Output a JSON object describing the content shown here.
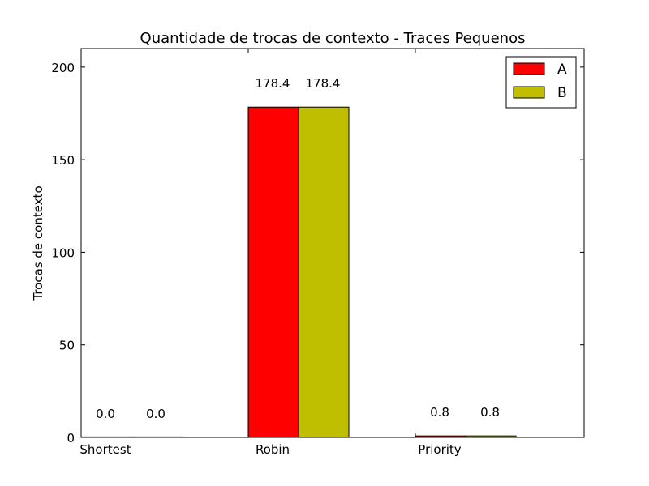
{
  "chart_data": {
    "type": "bar",
    "title": "Quantidade de trocas de contexto - Traces Pequenos",
    "xlabel": "",
    "ylabel": "Trocas de contexto",
    "categories": [
      "Shortest",
      "Robin",
      "Priority"
    ],
    "series": [
      {
        "name": "A",
        "values": [
          0.0,
          178.4,
          0.8
        ],
        "labels": [
          "0.0",
          "178.4",
          "0.8"
        ],
        "color": "#ff0000"
      },
      {
        "name": "B",
        "values": [
          0.0,
          178.4,
          0.8
        ],
        "labels": [
          "0.0",
          "178.4",
          "0.8"
        ],
        "color": "#bfbf00"
      }
    ],
    "ylim": [
      0,
      210
    ],
    "yticks": [
      0,
      50,
      100,
      150,
      200
    ],
    "ytick_labels": [
      "0",
      "50",
      "100",
      "150",
      "200"
    ],
    "grid": false,
    "legend_position": "top-right"
  }
}
